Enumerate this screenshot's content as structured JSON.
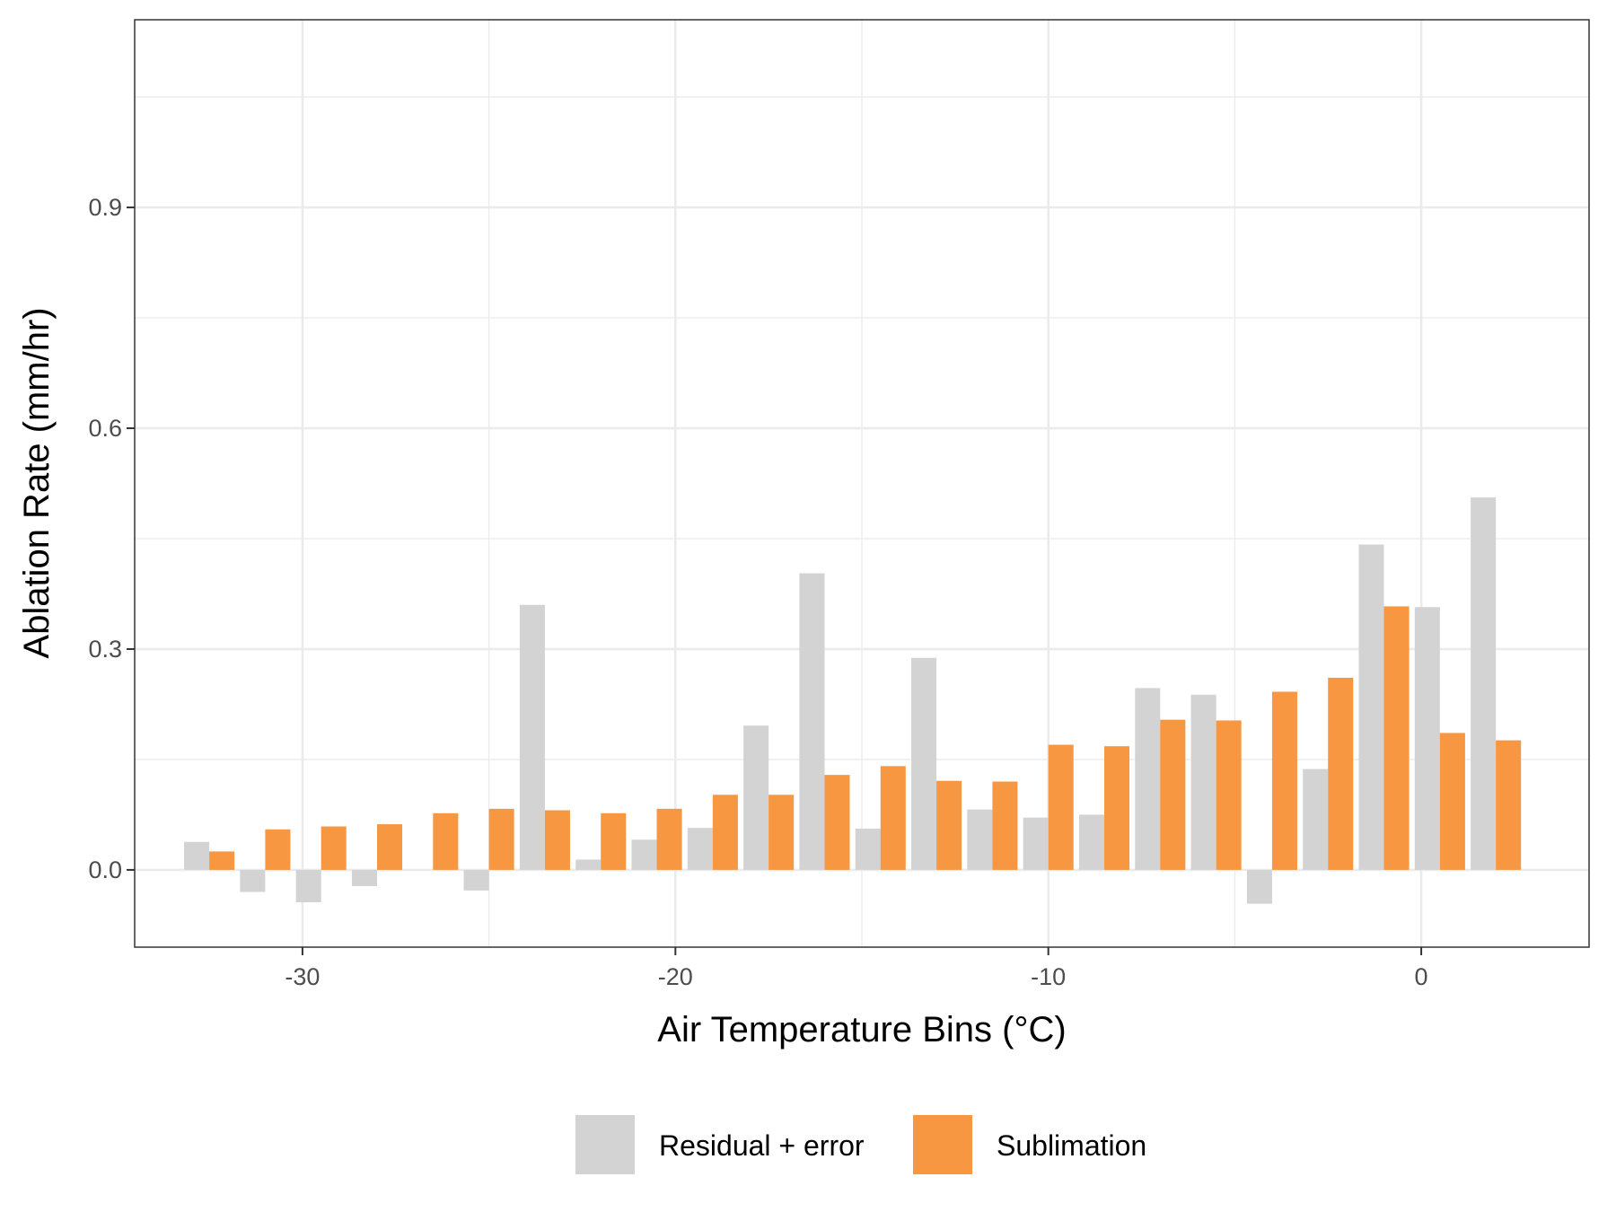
{
  "chart_data": {
    "type": "bar",
    "xlabel": "Air Temperature Bins (°C)",
    "ylabel": "Ablation Rate (mm/hr)",
    "xlim": [
      -34.5,
      4.5
    ],
    "ylim": [
      -0.105,
      1.155
    ],
    "x_ticks": [
      -30,
      -20,
      -10,
      0
    ],
    "x_tick_labels": [
      "-30",
      "-20",
      "-10",
      "0"
    ],
    "y_ticks": [
      0.0,
      0.3,
      0.6,
      0.9
    ],
    "y_tick_labels": [
      "0.0",
      "0.3",
      "0.6",
      "0.9"
    ],
    "grid": true,
    "legend_position": "bottom",
    "x": [
      -32.5,
      -31,
      -29.5,
      -28,
      -26.5,
      -25,
      -23.5,
      -22,
      -20.5,
      -19,
      -17.5,
      -16,
      -14.5,
      -13,
      -11.5,
      -10,
      -8.5,
      -7,
      -5.5,
      -4,
      -2.5,
      -1,
      0.5,
      2
    ],
    "series": [
      {
        "name": "Residual + error",
        "color": "#d3d3d3",
        "values": [
          0.038,
          -0.03,
          -0.044,
          -0.022,
          0.0,
          -0.028,
          0.36,
          0.014,
          0.041,
          0.057,
          0.196,
          0.403,
          0.056,
          0.288,
          0.082,
          0.071,
          0.075,
          0.247,
          0.238,
          -0.046,
          0.137,
          0.442,
          0.357,
          0.506
        ]
      },
      {
        "name": "Sublimation",
        "color": "#f79742",
        "values": [
          0.025,
          0.055,
          0.059,
          0.062,
          0.077,
          0.083,
          0.081,
          0.077,
          0.083,
          0.102,
          0.102,
          0.129,
          0.141,
          0.121,
          0.12,
          0.17,
          0.168,
          0.204,
          0.203,
          0.242,
          0.261,
          0.358,
          0.186,
          0.176
        ]
      }
    ]
  }
}
